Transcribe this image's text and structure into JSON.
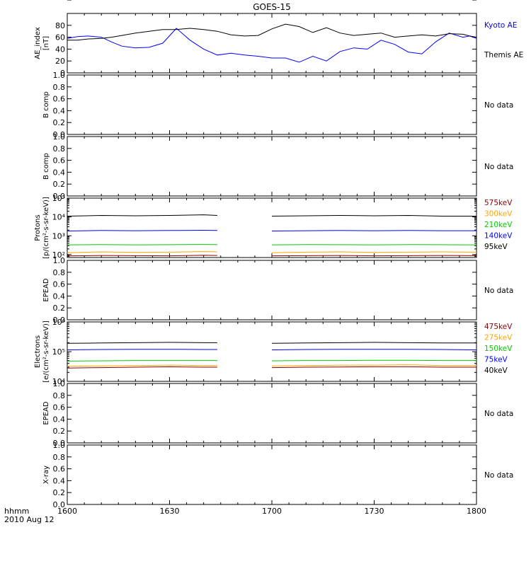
{
  "title": "GOES-15",
  "time_axis": {
    "label_line1": "hhmm",
    "label_line2": "2010 Aug 12",
    "ticks": [
      "1600",
      "1630",
      "1700",
      "1730",
      "1800"
    ],
    "range_minutes": [
      0,
      120
    ]
  },
  "no_data_text": "No data",
  "chart_data": [
    {
      "type": "line",
      "name": "ae-index",
      "ylabel": [
        "AE_index",
        "[nT]"
      ],
      "ylim": [
        0,
        100
      ],
      "yticks": [
        "0",
        "20",
        "40",
        "60",
        "80",
        "100"
      ],
      "x_minutes": [
        0,
        3,
        6,
        10,
        13,
        16,
        20,
        24,
        28,
        32,
        36,
        40,
        44,
        48,
        52,
        56,
        60,
        64,
        68,
        72,
        76,
        80,
        84,
        88,
        92,
        96,
        100,
        104,
        108,
        112,
        116,
        118,
        120
      ],
      "series": [
        {
          "name": "Kyoto AE",
          "color": "#0000ff",
          "values": [
            58,
            61,
            62,
            60,
            52,
            45,
            42,
            43,
            50,
            75,
            55,
            40,
            30,
            33,
            30,
            28,
            25,
            25,
            18,
            28,
            20,
            36,
            42,
            40,
            55,
            48,
            35,
            32,
            52,
            67,
            60,
            62,
            58
          ]
        },
        {
          "name": "Themis AE",
          "color": "#000000",
          "values": [
            55,
            55,
            57,
            58,
            60,
            63,
            67,
            70,
            73,
            73,
            75,
            73,
            70,
            64,
            62,
            63,
            74,
            82,
            78,
            68,
            76,
            67,
            63,
            65,
            67,
            60,
            62,
            64,
            62,
            66,
            65,
            62,
            60
          ]
        }
      ]
    },
    {
      "type": "line",
      "name": "b-comp-1",
      "ylabel": [
        "B comp"
      ],
      "ylim": [
        0,
        1
      ],
      "yticks": [
        "0.0",
        "0.2",
        "0.4",
        "0.6",
        "0.8",
        "1.0"
      ],
      "no_data": true
    },
    {
      "type": "line",
      "name": "b-comp-2",
      "ylabel": [
        "B comp"
      ],
      "ylim": [
        0,
        1
      ],
      "yticks": [
        "0.0",
        "0.2",
        "0.4",
        "0.6",
        "0.8",
        "1.0"
      ],
      "no_data": true
    },
    {
      "type": "line",
      "name": "protons",
      "ylabel": [
        "Protons",
        "[p/(cm²-s-sr-keV)]"
      ],
      "yscale": "log",
      "ylim": [
        70,
        100000
      ],
      "yticks": [
        "10²",
        "10³",
        "10⁴",
        "10⁵"
      ],
      "data_gap_minutes": [
        44,
        60
      ],
      "x_minutes": [
        0,
        10,
        20,
        30,
        40,
        44,
        60,
        70,
        80,
        90,
        100,
        110,
        120
      ],
      "series": [
        {
          "name": "575keV",
          "color": "#8b0000",
          "values": [
            85,
            90,
            88,
            86,
            92,
            90,
            86,
            88,
            90,
            86,
            88,
            90,
            88
          ]
        },
        {
          "name": "300keV",
          "color": "#ffa500",
          "values": [
            125,
            140,
            130,
            135,
            145,
            140,
            125,
            135,
            140,
            130,
            135,
            140,
            135
          ]
        },
        {
          "name": "210keV",
          "color": "#00cc00",
          "values": [
            330,
            340,
            330,
            335,
            345,
            340,
            330,
            340,
            335,
            330,
            340,
            335,
            330
          ]
        },
        {
          "name": "140keV",
          "color": "#0000ff",
          "values": [
            1800,
            1900,
            1850,
            1900,
            1950,
            1900,
            1800,
            1850,
            1900,
            1850,
            1900,
            1850,
            1850
          ]
        },
        {
          "name": "95keV",
          "color": "#000000",
          "values": [
            11000,
            12000,
            11500,
            12000,
            13000,
            12000,
            11000,
            11500,
            12000,
            11500,
            12000,
            11000,
            11000
          ]
        }
      ]
    },
    {
      "type": "line",
      "name": "epead-1",
      "ylabel": [
        "EPEAD"
      ],
      "ylim": [
        0,
        1
      ],
      "yticks": [
        "0.0",
        "0.2",
        "0.4",
        "0.6",
        "0.8",
        "1.0"
      ],
      "no_data": true
    },
    {
      "type": "line",
      "name": "electrons",
      "ylabel": [
        "Electrons",
        "[e/(cm²-s-sr-keV)]"
      ],
      "yscale": "log",
      "ylim": [
        10000,
        1000000
      ],
      "yticks": [
        "10⁴",
        "10⁵",
        "10⁶"
      ],
      "data_gap_minutes": [
        44,
        60
      ],
      "x_minutes": [
        0,
        10,
        20,
        30,
        40,
        44,
        60,
        70,
        80,
        90,
        100,
        110,
        120
      ],
      "series": [
        {
          "name": "475keV",
          "color": "#8b0000",
          "values": [
            28000,
            29000,
            30000,
            31000,
            30000,
            30000,
            29000,
            30000,
            30500,
            31000,
            31000,
            30000,
            30000
          ]
        },
        {
          "name": "275keV",
          "color": "#ffa500",
          "values": [
            32000,
            33000,
            34000,
            35000,
            34000,
            34000,
            33000,
            34000,
            35000,
            35000,
            36000,
            34000,
            34000
          ]
        },
        {
          "name": "150keV",
          "color": "#00cc00",
          "values": [
            48000,
            49000,
            50000,
            50000,
            50000,
            50000,
            49000,
            50000,
            50000,
            51000,
            51000,
            50000,
            50000
          ]
        },
        {
          "name": "75keV",
          "color": "#0000ff",
          "values": [
            115000,
            118000,
            120000,
            120000,
            118000,
            118000,
            115000,
            118000,
            120000,
            120000,
            120000,
            118000,
            115000
          ]
        },
        {
          "name": "40keV",
          "color": "#000000",
          "values": [
            190000,
            195000,
            200000,
            205000,
            200000,
            200000,
            190000,
            195000,
            200000,
            205000,
            200000,
            195000,
            195000
          ]
        }
      ]
    },
    {
      "type": "line",
      "name": "epead-2",
      "ylabel": [
        "EPEAD"
      ],
      "ylim": [
        0,
        1
      ],
      "yticks": [
        "0.0",
        "0.2",
        "0.4",
        "0.6",
        "0.8",
        "1.0"
      ],
      "no_data": true
    },
    {
      "type": "line",
      "name": "x-ray",
      "ylabel": [
        "X-ray"
      ],
      "ylim": [
        0,
        1
      ],
      "yticks": [
        "0.0",
        "0.2",
        "0.4",
        "0.6",
        "0.8",
        "1.0"
      ],
      "no_data": true
    }
  ]
}
